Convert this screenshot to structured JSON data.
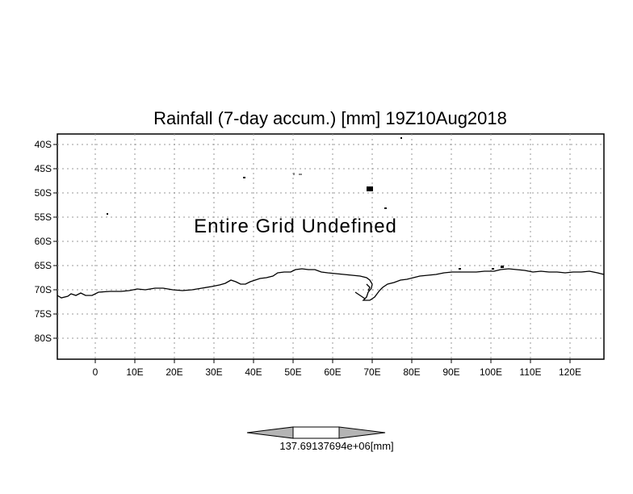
{
  "title": "Rainfall (7-day accum.) [mm] 19Z10Aug2018",
  "message": "Entire Grid Undefined",
  "lat_labels": [
    "40S",
    "45S",
    "50S",
    "55S",
    "60S",
    "65S",
    "70S",
    "75S",
    "80S"
  ],
  "lon_labels": [
    "0",
    "10E",
    "20E",
    "30E",
    "40E",
    "50E",
    "60E",
    "70E",
    "80E",
    "90E",
    "100E",
    "110E",
    "120E"
  ],
  "colorbar": {
    "label": "137.69137694e+06[mm]",
    "colors": [
      "#b4b4b4",
      "#ffffff",
      "#b4b4b4"
    ]
  },
  "map": {
    "lon_range": [
      -10,
      128
    ],
    "lat_range": [
      -38,
      -84
    ],
    "grid": "dotted",
    "coastline_color": "#000000"
  }
}
